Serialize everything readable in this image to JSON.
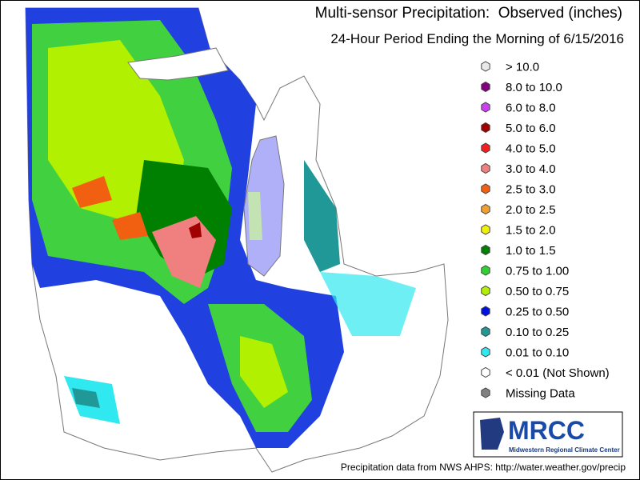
{
  "header": {
    "title": "Multi-sensor Precipitation:  Observed (inches)",
    "subtitle": "24-Hour Period Ending the Morning of 6/15/2016"
  },
  "legend": {
    "items": [
      {
        "label": "> 10.0",
        "color": "#e8e8e8"
      },
      {
        "label": "8.0 to 10.0",
        "color": "#800080"
      },
      {
        "label": "6.0 to 8.0",
        "color": "#c840f0"
      },
      {
        "label": "5.0 to 6.0",
        "color": "#a00000"
      },
      {
        "label": "4.0 to 5.0",
        "color": "#f02020"
      },
      {
        "label": "3.0 to 4.0",
        "color": "#f08080"
      },
      {
        "label": "2.5 to 3.0",
        "color": "#f06010"
      },
      {
        "label": "2.0 to 2.5",
        "color": "#f0a030"
      },
      {
        "label": "1.5 to 2.0",
        "color": "#f0f000"
      },
      {
        "label": "1.0 to 1.5",
        "color": "#008000"
      },
      {
        "label": "0.75 to 1.00",
        "color": "#30d030"
      },
      {
        "label": "0.50 to 0.75",
        "color": "#b0f000"
      },
      {
        "label": "0.25 to 0.50",
        "color": "#0010e0"
      },
      {
        "label": "0.10 to 0.25",
        "color": "#209898"
      },
      {
        "label": "0.01 to 0.10",
        "color": "#30e8f0"
      },
      {
        "label": "< 0.01 (Not Shown)",
        "color": "#ffffff"
      },
      {
        "label": "Missing Data",
        "color": "#808080"
      }
    ]
  },
  "logo": {
    "name": "MRCC",
    "subtitle": "Midwestern Regional Climate Center"
  },
  "footer": {
    "source": "Precipitation data from NWS AHPS: http://water.weather.gov/precip"
  }
}
